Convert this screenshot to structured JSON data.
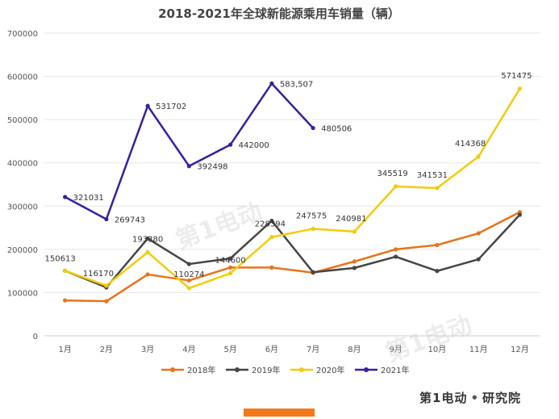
{
  "chart_data": {
    "type": "line",
    "title": "2018-2021年全球新能源乘用车销量（辆）",
    "categories": [
      "1月",
      "2月",
      "3月",
      "4月",
      "5月",
      "6月",
      "7月",
      "8月",
      "9月",
      "10月",
      "11月",
      "12月"
    ],
    "ylim": [
      0,
      700000
    ],
    "yticks": [
      0,
      100000,
      200000,
      300000,
      400000,
      500000,
      600000,
      700000
    ],
    "grid": true,
    "legend_position": "bottom",
    "series": [
      {
        "name": "2018年",
        "color": "#e8731b",
        "values": [
          82000,
          80000,
          142000,
          128000,
          158000,
          158000,
          146000,
          172000,
          200000,
          210000,
          237000,
          286000
        ],
        "labels": [
          null,
          null,
          null,
          null,
          null,
          null,
          null,
          null,
          null,
          null,
          null,
          null
        ]
      },
      {
        "name": "2019年",
        "color": "#454545",
        "values": [
          150613,
          112000,
          225000,
          166000,
          179000,
          266000,
          147000,
          157000,
          183000,
          150000,
          177000,
          280000
        ],
        "labels": [
          null,
          null,
          null,
          null,
          null,
          null,
          null,
          null,
          null,
          null,
          null,
          null
        ]
      },
      {
        "name": "2020年",
        "color": "#f2cc0c",
        "values": [
          150613,
          116170,
          193380,
          110274,
          144600,
          228394,
          247575,
          240981,
          345519,
          341531,
          414368,
          571475
        ],
        "labels": [
          "150613",
          "116170",
          "193380",
          "110274",
          "144600",
          "228394",
          "247575",
          "240981",
          "345519",
          "341531",
          "414368",
          "571475"
        ]
      },
      {
        "name": "2021年",
        "color": "#3a1fa0",
        "values": [
          321031,
          269743,
          531702,
          392498,
          442000,
          583507,
          480506,
          null,
          null,
          null,
          null,
          null
        ],
        "labels": [
          "321031",
          "269743",
          "531702",
          "392498",
          "442000",
          "583,507",
          "480506",
          null,
          null,
          null,
          null,
          null
        ]
      }
    ]
  },
  "brand": {
    "name": "第1电动",
    "separator": "•",
    "suffix": "研究院"
  },
  "watermark": {
    "text": "第1电动"
  }
}
